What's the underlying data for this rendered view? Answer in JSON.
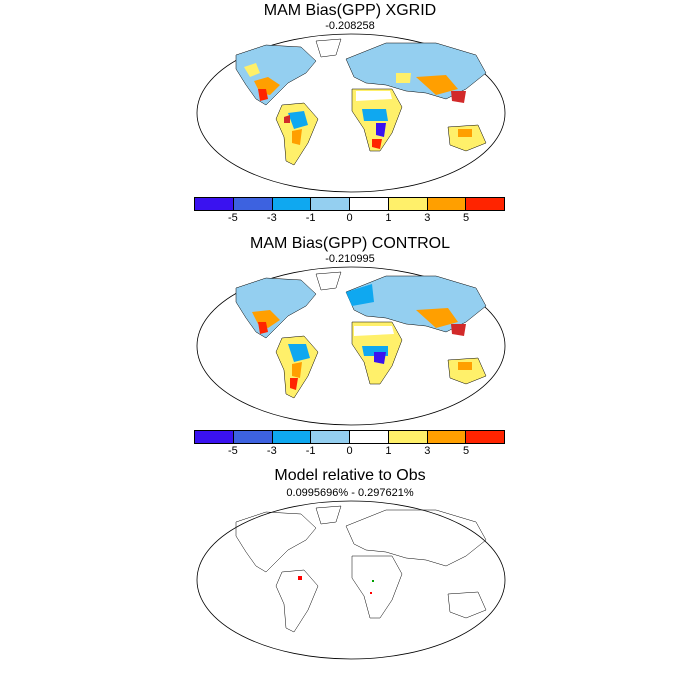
{
  "panels": [
    {
      "title": "MAM Bias(GPP) XGRID",
      "subtitle": "-0.208258"
    },
    {
      "title": "MAM Bias(GPP) CONTROL",
      "subtitle": "-0.210995"
    },
    {
      "title": "Model relative to Obs",
      "subtitle": "0.0995696% - 0.297621%"
    }
  ],
  "colorbar": {
    "colors": [
      "#3a12f0",
      "#3d62e0",
      "#0fa8f0",
      "#94cff0",
      "#ffffff",
      "#fff06a",
      "#ff9f00",
      "#ff2400",
      "#d22a2a"
    ],
    "labels": [
      "-5",
      "-3",
      "-1",
      "0",
      "1",
      "3",
      "5"
    ]
  },
  "colors": {
    "land_outline": "#000000",
    "ocean": "#ffffff"
  }
}
